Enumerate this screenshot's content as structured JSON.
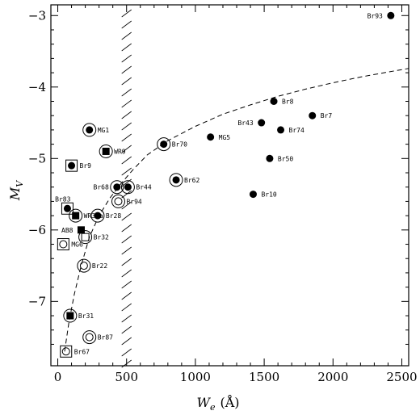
{
  "chart_data": {
    "type": "scatter",
    "title": "",
    "xlabel_main": "W",
    "xlabel_sub": "e",
    "xlabel_unit": "(Å)",
    "ylabel_main": "M",
    "ylabel_sub": "V",
    "xlim": [
      -50,
      2550
    ],
    "ylim": [
      -2.85,
      -7.9
    ],
    "xticks": [
      0,
      500,
      1000,
      1500,
      2000,
      2500
    ],
    "xtick_labels": [
      "0",
      "500",
      "1000",
      "1500",
      "2000",
      "2500"
    ],
    "yticks": [
      -3,
      -4,
      -5,
      -6,
      -7
    ],
    "ytick_labels": [
      "−3",
      "−4",
      "−5",
      "−6",
      "−7"
    ],
    "grid": false,
    "vertical_limit_x": 500,
    "dashed_curve": [
      [
        50,
        -7.7
      ],
      [
        80,
        -7.3
      ],
      [
        120,
        -6.9
      ],
      [
        170,
        -6.5
      ],
      [
        230,
        -6.1
      ],
      [
        300,
        -5.8
      ],
      [
        380,
        -5.55
      ],
      [
        460,
        -5.35
      ],
      [
        550,
        -5.15
      ],
      [
        650,
        -4.95
      ],
      [
        800,
        -4.75
      ],
      [
        1000,
        -4.55
      ],
      [
        1200,
        -4.38
      ],
      [
        1400,
        -4.25
      ],
      [
        1600,
        -4.13
      ],
      [
        1800,
        -4.03
      ],
      [
        2000,
        -3.94
      ],
      [
        2200,
        -3.86
      ],
      [
        2400,
        -3.79
      ],
      [
        2550,
        -3.74
      ]
    ],
    "points": [
      {
        "label": "Br93",
        "x": 2420,
        "y": -3.0,
        "marker": "filled-circle"
      },
      {
        "label": "Br8",
        "x": 1570,
        "y": -4.2,
        "marker": "filled-circle"
      },
      {
        "label": "Br7",
        "x": 1850,
        "y": -4.4,
        "marker": "filled-circle"
      },
      {
        "label": "Br43",
        "x": 1480,
        "y": -4.5,
        "marker": "filled-circle"
      },
      {
        "label": "Br74",
        "x": 1620,
        "y": -4.6,
        "marker": "filled-circle"
      },
      {
        "label": "MG5",
        "x": 1110,
        "y": -4.7,
        "marker": "filled-circle"
      },
      {
        "label": "Br50",
        "x": 1540,
        "y": -5.0,
        "marker": "filled-circle"
      },
      {
        "label": "Br10",
        "x": 1420,
        "y": -5.5,
        "marker": "filled-circle"
      },
      {
        "label": "Br70",
        "x": 770,
        "y": -4.8,
        "marker": "filled-circle-ring"
      },
      {
        "label": "Br62",
        "x": 860,
        "y": -5.3,
        "marker": "filled-circle-ring"
      },
      {
        "label": "MG1",
        "x": 230,
        "y": -4.6,
        "marker": "filled-circle-ring"
      },
      {
        "label": "WR9",
        "x": 350,
        "y": -4.9,
        "marker": "filled-square-ring"
      },
      {
        "label": "Br9",
        "x": 100,
        "y": -5.1,
        "marker": "filled-circle-square"
      },
      {
        "label": "Br68",
        "x": 430,
        "y": -5.4,
        "marker": "filled-circle-ring"
      },
      {
        "label": "Br44",
        "x": 510,
        "y": -5.4,
        "marker": "filled-circle-ring"
      },
      {
        "label": "Br94",
        "x": 440,
        "y": -5.6,
        "marker": "open-circle-ring"
      },
      {
        "label": "Br83",
        "x": 70,
        "y": -5.7,
        "marker": "filled-circle-square"
      },
      {
        "label": "WR30a",
        "x": 130,
        "y": -5.8,
        "marker": "filled-square-ring"
      },
      {
        "label": "Br28",
        "x": 290,
        "y": -5.8,
        "marker": "filled-circle-ring"
      },
      {
        "label": "AB8",
        "x": 170,
        "y": -6.0,
        "marker": "filled-square"
      },
      {
        "label": "Br32",
        "x": 200,
        "y": -6.1,
        "marker": "open-square-ring"
      },
      {
        "label": "MG6",
        "x": 40,
        "y": -6.2,
        "marker": "open-circle-square"
      },
      {
        "label": "Br22",
        "x": 190,
        "y": -6.5,
        "marker": "open-circle-ring"
      },
      {
        "label": "Br31",
        "x": 90,
        "y": -7.2,
        "marker": "filled-square-ring"
      },
      {
        "label": "Br87",
        "x": 230,
        "y": -7.5,
        "marker": "open-circle-ring"
      },
      {
        "label": "Br67",
        "x": 60,
        "y": -7.7,
        "marker": "open-circle-square"
      }
    ]
  }
}
